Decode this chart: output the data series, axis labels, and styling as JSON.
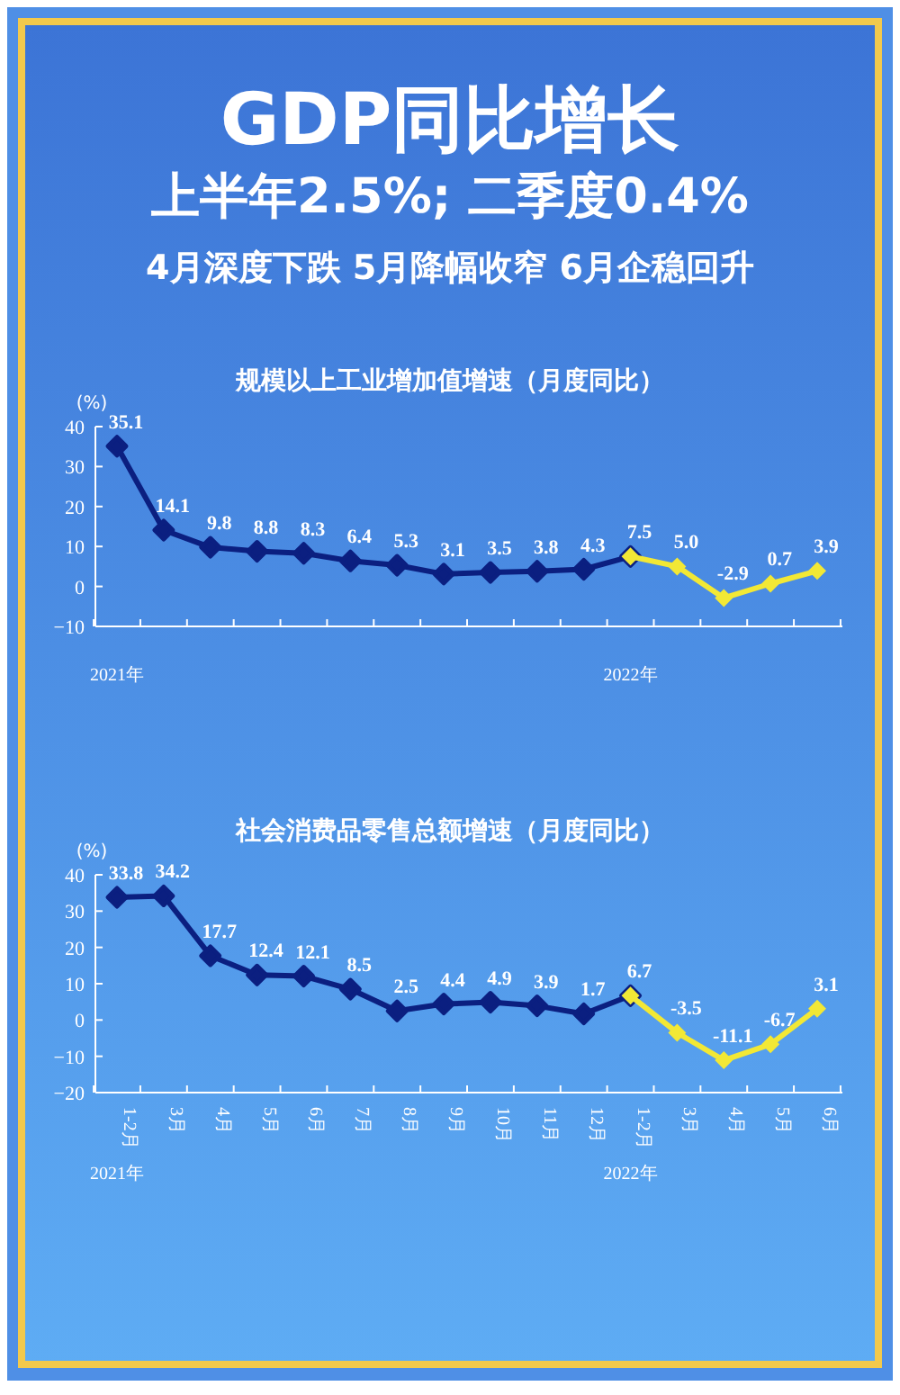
{
  "chart_data": [
    {
      "type": "other",
      "title": "GDP同比增长",
      "subtitle": "上半年2.5%; 二季度0.4%",
      "annotations": [
        "4月深度下跌 5月降幅收窄 6月企稳回升"
      ]
    },
    {
      "type": "line",
      "title": "规模以上工业增加值增速（月度同比）",
      "ylabel": "(%)",
      "categories": [
        null,
        null,
        null,
        null,
        null,
        null,
        null,
        null,
        null,
        null,
        null,
        null,
        null,
        null,
        null,
        null
      ],
      "ylim": [
        -10,
        40
      ],
      "yticks": [
        -10,
        0,
        10,
        20,
        30,
        40
      ],
      "tick_labels": "y",
      "marker": "diamond",
      "annotations": [
        "2021年",
        "2022年"
      ],
      "series": [
        {
          "color": "#0b1f80",
          "values": [
            35.1,
            14.1,
            9.8,
            8.8,
            8.3,
            6.4,
            5.3,
            3.1,
            3.5,
            3.8,
            4.3,
            7.5,
            null,
            null,
            null,
            null
          ],
          "value_labels": [
            "35.1",
            "14.1",
            "9.8",
            "8.8",
            "8.3",
            "6.4",
            "5.3",
            "3.1",
            "3.5",
            "3.8",
            "4.3",
            null,
            null,
            null,
            null,
            null
          ]
        },
        {
          "color": "#f2e835",
          "values": [
            null,
            null,
            null,
            null,
            null,
            null,
            null,
            null,
            null,
            null,
            null,
            7.5,
            5.0,
            -2.9,
            0.7,
            3.9
          ],
          "value_labels": [
            null,
            null,
            null,
            null,
            null,
            null,
            null,
            null,
            null,
            null,
            null,
            "7.5",
            "5.0",
            "-2.9",
            "0.7",
            "3.9"
          ]
        }
      ]
    },
    {
      "type": "line",
      "title": "社会消费品零售总额增速（月度同比）",
      "ylabel": "(%)",
      "categories": [
        "1-2月",
        "3月",
        "4月",
        "5月",
        "6月",
        "7月",
        "8月",
        "9月",
        "10月",
        "11月",
        "12月",
        "1-2月",
        "3月",
        "4月",
        "5月",
        "6月"
      ],
      "ylim": [
        -20,
        40
      ],
      "yticks": [
        -20,
        -10,
        0,
        10,
        20,
        30,
        40
      ],
      "marker": "diamond",
      "annotations": [
        "2021年",
        "2022年"
      ],
      "series": [
        {
          "color": "#0b1f80",
          "values": [
            33.8,
            34.2,
            17.7,
            12.4,
            12.1,
            8.5,
            2.5,
            4.4,
            4.9,
            3.9,
            1.7,
            6.7,
            null,
            null,
            null,
            null
          ],
          "value_labels": [
            "33.8",
            "34.2",
            "17.7",
            "12.4",
            "12.1",
            "8.5",
            "2.5",
            "4.4",
            "4.9",
            "3.9",
            "1.7",
            null,
            null,
            null,
            null,
            null
          ]
        },
        {
          "color": "#f2e835",
          "values": [
            null,
            null,
            null,
            null,
            null,
            null,
            null,
            null,
            null,
            null,
            null,
            6.7,
            -3.5,
            -11.1,
            -6.7,
            3.1
          ],
          "value_labels": [
            null,
            null,
            null,
            null,
            null,
            null,
            null,
            null,
            null,
            null,
            null,
            "6.7",
            "-3.5",
            "-11.1",
            "-6.7",
            "3.1"
          ]
        }
      ]
    }
  ]
}
